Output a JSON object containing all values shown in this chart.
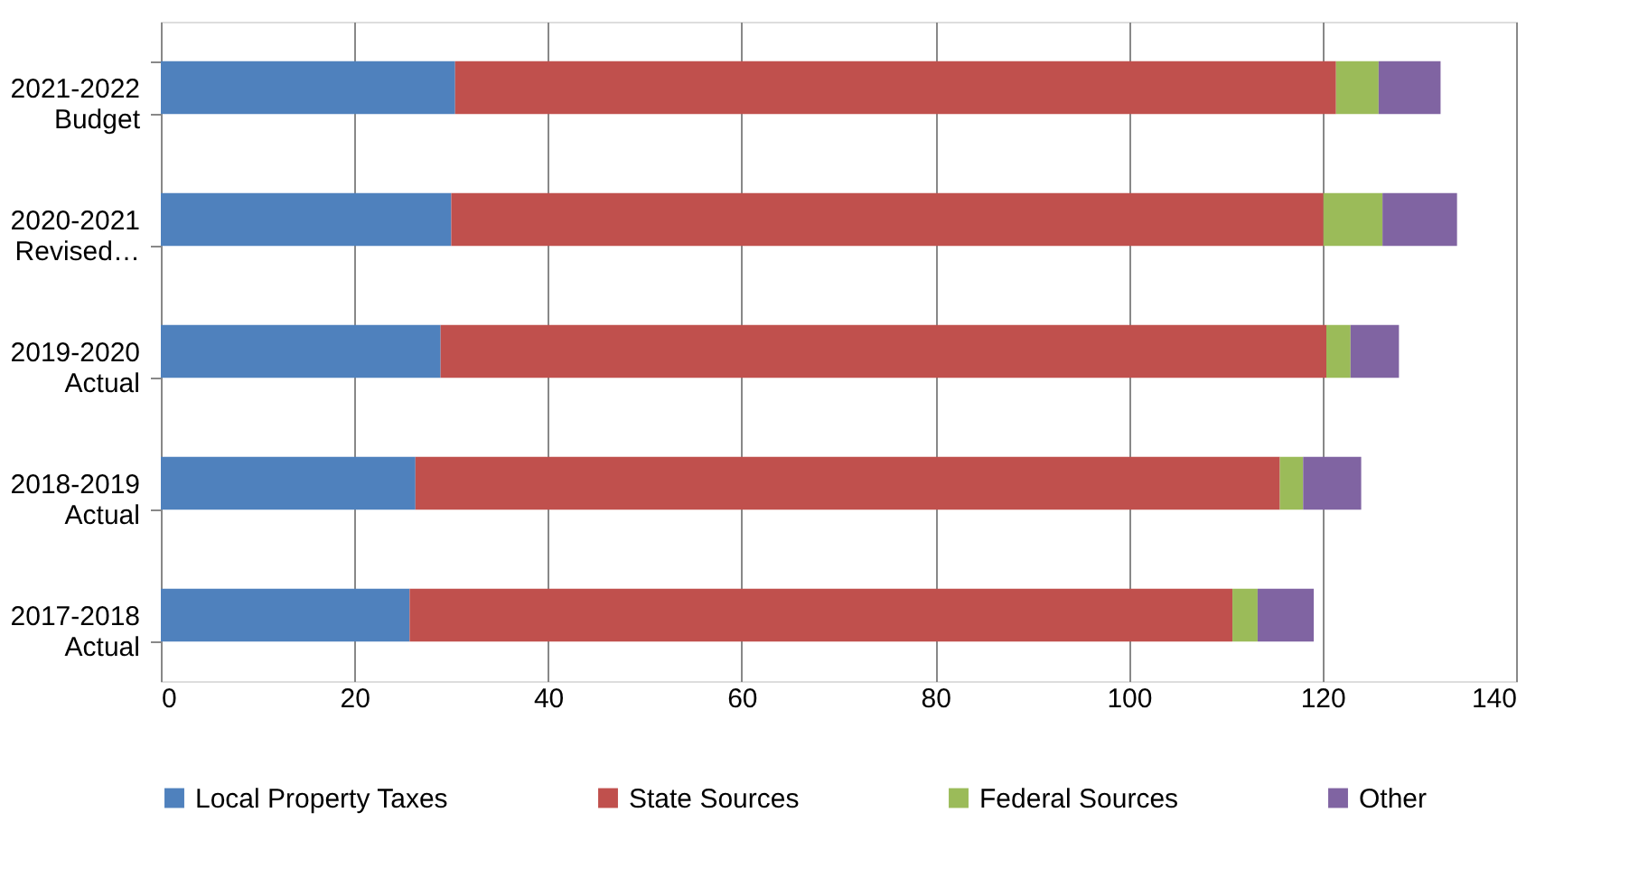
{
  "chart_data": {
    "type": "bar",
    "orientation": "horizontal",
    "stacked": true,
    "categories": [
      "2021-2022 Budget",
      "2020-2021 Revised…",
      "2019-2020 Actual",
      "2018-2019 Actual",
      "2017-2018 Actual"
    ],
    "series": [
      {
        "name": "Local Property Taxes",
        "color": "#4f81bd",
        "values": [
          30.4,
          30.0,
          28.9,
          26.3,
          25.7
        ]
      },
      {
        "name": "State Sources",
        "color": "#c0504d",
        "values": [
          91.0,
          90.1,
          91.5,
          89.3,
          85.0
        ]
      },
      {
        "name": "Federal Sources",
        "color": "#9bbb59",
        "values": [
          4.4,
          6.1,
          2.5,
          2.4,
          2.6
        ]
      },
      {
        "name": "Other",
        "color": "#8064a2",
        "values": [
          6.4,
          7.7,
          5.0,
          6.0,
          5.8
        ]
      }
    ],
    "xlim": [
      0,
      140
    ],
    "xticks": [
      0,
      20,
      40,
      60,
      80,
      100,
      120,
      140
    ],
    "grid": "x",
    "legend": "bottom"
  }
}
